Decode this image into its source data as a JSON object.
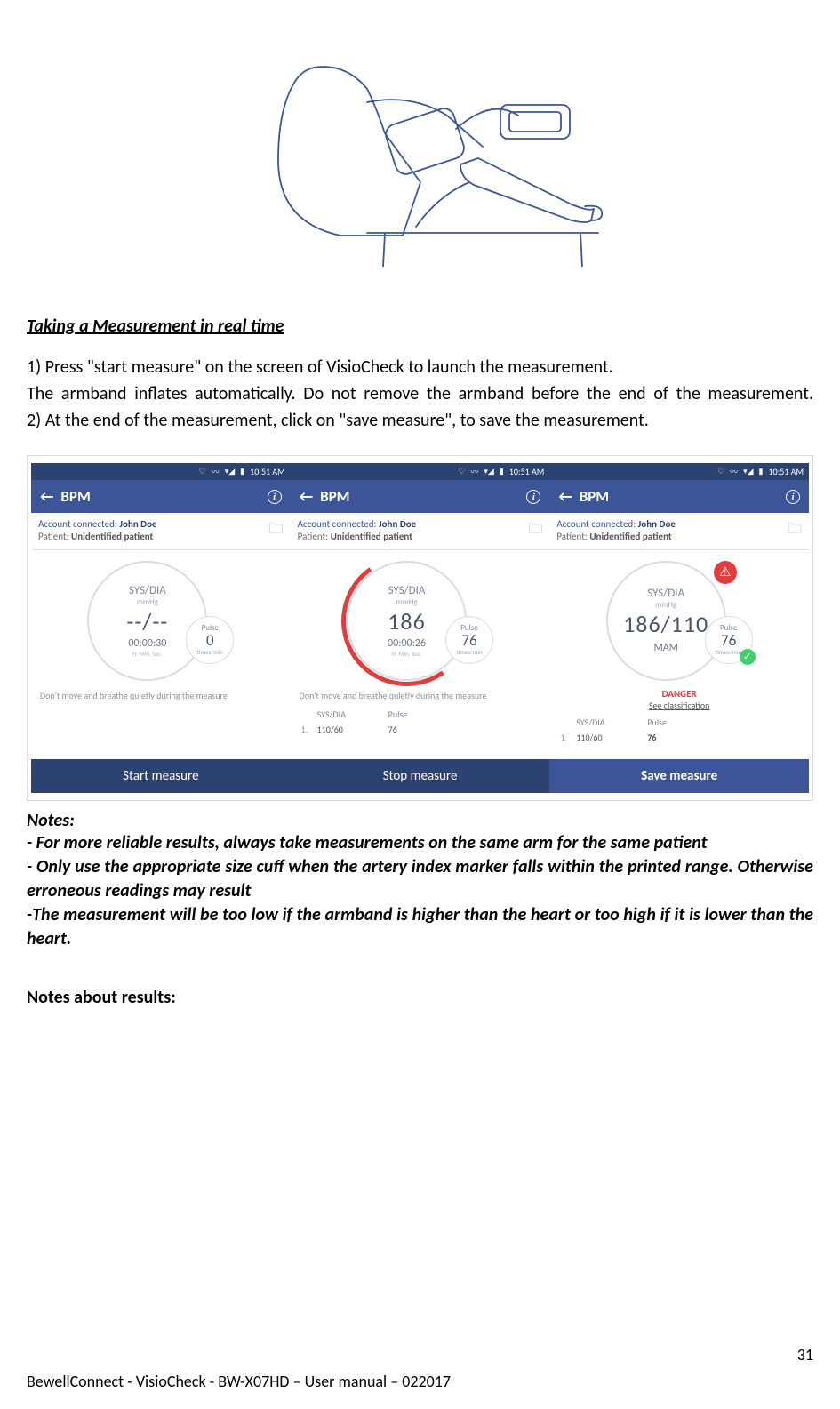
{
  "section_title": "Taking a Measurement in real time",
  "steps": {
    "s1": "1) Press \"start measure\" on the screen of VisioCheck to launch the measurement.",
    "s1b": "The armband inflates automatically. Do not remove the armband before the end of the measurement.",
    "s2": "2) At the end of the measurement, click on \"save measure\", to save the measurement."
  },
  "statusbar": {
    "time": "10:51 AM"
  },
  "appbar": {
    "back": "←",
    "title": "BPM",
    "info": "i"
  },
  "account": {
    "label": "Account connected:",
    "name": "John Doe",
    "patient_label": "Patient:",
    "patient_val": "Unidentified patient"
  },
  "screens": [
    {
      "sysdialbl": "SYS/DIA",
      "unit": "mmHg",
      "bigval": "--/--",
      "time": "00:00:30",
      "timelbl": "H.   Min.  Sec.",
      "pulse_lbl": "Pulse",
      "pulse_val": "0",
      "pulse_unit": "times/min",
      "hint": "Don't move and breathe quietly during the measure",
      "button": "Start measure",
      "arc": false,
      "alert": false,
      "check": false,
      "mam": "",
      "danger": "",
      "classif": "",
      "table": null
    },
    {
      "sysdialbl": "SYS/DIA",
      "unit": "mmHg",
      "bigval": "186",
      "time": "00:00:26",
      "timelbl": "H.   Min.  Sec.",
      "pulse_lbl": "Pulse",
      "pulse_val": "76",
      "pulse_unit": "times/min",
      "hint": "Don't move and breathe quietly during the measure",
      "button": "Stop measure",
      "arc": true,
      "alert": false,
      "check": false,
      "mam": "",
      "danger": "",
      "classif": "",
      "table": {
        "h1": "SYS/DIA",
        "h2": "Pulse",
        "r1n": "1.",
        "r1a": "110/60",
        "r1b": "76"
      }
    },
    {
      "sysdialbl": "SYS/DIA",
      "unit": "mmHg",
      "bigval": "186/110",
      "time": "",
      "timelbl": "",
      "pulse_lbl": "Pulse",
      "pulse_val": "76",
      "pulse_unit": "times/min",
      "hint": "",
      "button": "Save measure",
      "arc": false,
      "alert": true,
      "check": true,
      "mam": "MAM",
      "danger": "DANGER",
      "classif": "See classification",
      "table": {
        "h1": "SYS/DIA",
        "h2": "Pulse",
        "r1n": "1.",
        "r1a": "110/60",
        "r1b": "76"
      }
    }
  ],
  "notes_title": "Notes:",
  "notes": {
    "n1": "- For more reliable results, always take measurements on the same arm for the same patient",
    "n2": "- Only use the appropriate size cuff when the artery index marker falls within the printed range. Otherwise erroneous readings may result",
    "n3": "-The measurement will be too low if the armband is higher than the heart or too high if it is lower than the heart."
  },
  "subheading": "Notes about results:",
  "page_number": "31",
  "footer": "BewellConnect - VisioCheck - BW-X07HD – User manual – 022017"
}
